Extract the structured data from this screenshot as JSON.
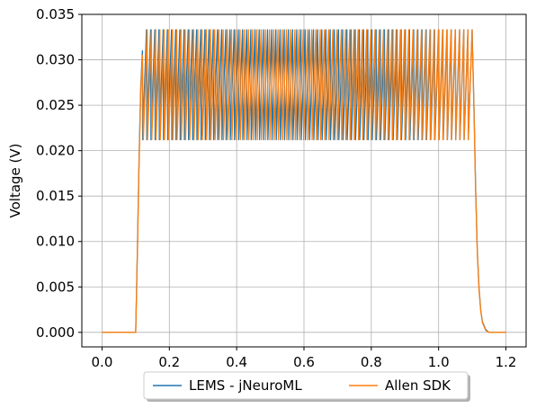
{
  "chart_data": {
    "type": "line",
    "title": "",
    "xlabel": "",
    "ylabel": "Voltage (V)",
    "xlim": [
      -0.06,
      1.26
    ],
    "ylim": [
      -0.0016,
      0.035
    ],
    "x_ticks": [
      0.0,
      0.2,
      0.4,
      0.6,
      0.8,
      1.0,
      1.2
    ],
    "x_tick_labels": [
      "0.0",
      "0.2",
      "0.4",
      "0.6",
      "0.8",
      "1.0",
      "1.2"
    ],
    "y_ticks": [
      0.0,
      0.005,
      0.01,
      0.015,
      0.02,
      0.025,
      0.03,
      0.035
    ],
    "y_tick_labels": [
      "0.000",
      "0.005",
      "0.010",
      "0.015",
      "0.020",
      "0.025",
      "0.030",
      "0.035"
    ],
    "grid": true,
    "legend_position": "bottom-center, below axes",
    "series": [
      {
        "name": "LEMS - jNeuroML",
        "color": "#1f77b4",
        "x": [
          0.0,
          0.1,
          0.105,
          0.11,
          0.115,
          0.12,
          0.125,
          1.1,
          1.105,
          1.11,
          1.115,
          1.12,
          1.125,
          1.13,
          1.14,
          1.15,
          1.2
        ],
        "y": [
          0.0,
          0.0,
          0.009,
          0.019,
          0.027,
          0.031,
          0.0333,
          0.0325,
          0.025,
          0.016,
          0.009,
          0.005,
          0.0025,
          0.0012,
          0.0003,
          0.0,
          0.0
        ],
        "oscillation": {
          "start": 0.12,
          "end": 1.1,
          "cycles": 79,
          "high": 0.0333,
          "low": 0.0212
        }
      },
      {
        "name": "Allen SDK",
        "color": "#ff7f0e",
        "x": [
          0.0,
          0.1,
          0.105,
          0.11,
          0.115,
          0.12,
          0.125,
          1.1,
          1.105,
          1.11,
          1.115,
          1.12,
          1.125,
          1.13,
          1.14,
          1.15,
          1.2
        ],
        "y": [
          0.0,
          0.0,
          0.0085,
          0.0185,
          0.0265,
          0.0305,
          0.0333,
          0.0318,
          0.0245,
          0.0155,
          0.0088,
          0.0048,
          0.0024,
          0.0011,
          0.0002,
          0.0,
          0.0
        ],
        "oscillation": {
          "start": 0.122,
          "end": 1.1,
          "cycles": 78,
          "high": 0.0333,
          "low": 0.0212
        }
      }
    ]
  }
}
